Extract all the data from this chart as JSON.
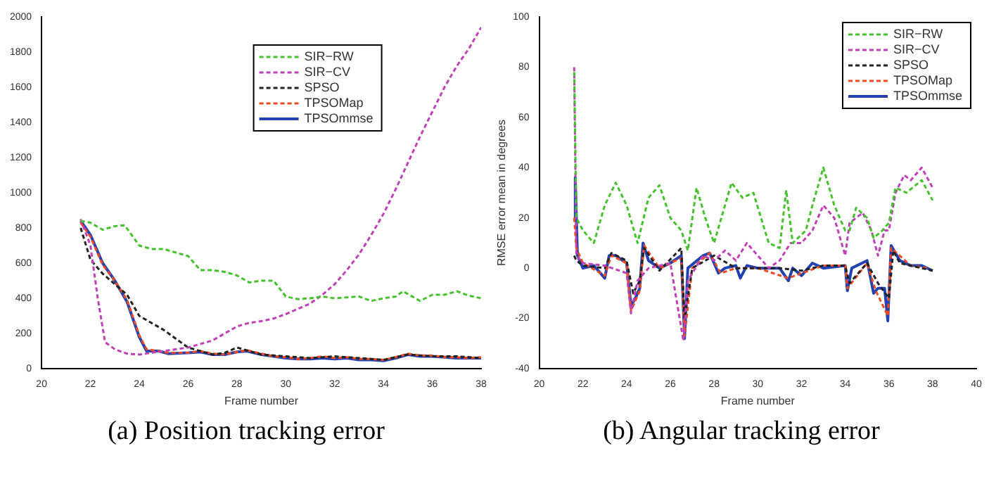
{
  "chart_data": [
    {
      "type": "line",
      "title": "(a) Position tracking error",
      "xlabel": "Frame number",
      "xlim": [
        20,
        38
      ],
      "xticks": [
        20,
        22,
        24,
        26,
        28,
        30,
        32,
        34,
        36,
        38
      ],
      "ylim": [
        0,
        2000
      ],
      "yticks": [
        0,
        200,
        400,
        600,
        800,
        1000,
        1200,
        1400,
        1600,
        1800,
        2000
      ],
      "grid": false,
      "legend": "top",
      "series": [
        {
          "name": "SIR−RW",
          "color": "#44c22c",
          "line_style": "dashed",
          "x": [
            21.6,
            22,
            22.5,
            23,
            23.4,
            24,
            24.5,
            25,
            25.5,
            26,
            26.5,
            27,
            27.5,
            28,
            28.5,
            29,
            29.5,
            30,
            30.5,
            31,
            31.5,
            32,
            32.5,
            33,
            33.5,
            34,
            34.5,
            34.8,
            35.5,
            36,
            36.5,
            37,
            37.5,
            38
          ],
          "values": [
            840,
            830,
            790,
            810,
            815,
            700,
            680,
            680,
            660,
            640,
            560,
            560,
            550,
            530,
            490,
            500,
            500,
            410,
            395,
            400,
            410,
            400,
            405,
            410,
            385,
            400,
            410,
            440,
            385,
            420,
            420,
            440,
            415,
            400
          ]
        },
        {
          "name": "SIR−CV",
          "color": "#c040b8",
          "line_style": "dashed",
          "x": [
            21.6,
            22,
            22.3,
            22.6,
            23,
            23.5,
            24,
            24.5,
            25,
            25.5,
            26,
            26.5,
            27,
            27.5,
            28,
            28.5,
            29,
            29.5,
            30,
            30.5,
            31,
            31.5,
            32,
            32.5,
            33,
            33.5,
            34,
            34.5,
            35,
            35.5,
            36,
            36.5,
            37,
            37.5,
            38
          ],
          "values": [
            850,
            700,
            400,
            150,
            110,
            85,
            80,
            90,
            100,
            110,
            120,
            140,
            160,
            200,
            240,
            260,
            270,
            285,
            310,
            340,
            370,
            420,
            480,
            560,
            650,
            760,
            880,
            1020,
            1170,
            1320,
            1460,
            1600,
            1720,
            1820,
            1940
          ]
        },
        {
          "name": "SPSO",
          "color": "#222222",
          "line_style": "dashed",
          "x": [
            21.6,
            22,
            22.5,
            23,
            23.5,
            24,
            24.5,
            25,
            25.5,
            26,
            26.5,
            27,
            27.5,
            28,
            28.5,
            29,
            30,
            31,
            32,
            33,
            34,
            35,
            36,
            37,
            38
          ],
          "values": [
            800,
            620,
            540,
            480,
            420,
            300,
            260,
            220,
            170,
            120,
            100,
            80,
            90,
            120,
            100,
            80,
            70,
            60,
            70,
            60,
            50,
            80,
            70,
            70,
            60
          ]
        },
        {
          "name": "TPSOMap",
          "color": "#f04a20",
          "line_style": "dashed",
          "x": [
            21.6,
            22,
            22.5,
            23,
            23.5,
            24,
            24.3,
            24.8,
            25.2,
            26,
            26.5,
            27,
            27.5,
            28,
            28.4,
            29,
            29.5,
            30,
            30.5,
            31,
            31.5,
            32,
            32.5,
            33,
            33.5,
            34,
            34.5,
            35,
            35.5,
            36,
            36.5,
            37,
            37.5,
            38
          ],
          "values": [
            830,
            750,
            590,
            500,
            390,
            190,
            110,
            100,
            90,
            90,
            100,
            85,
            80,
            95,
            105,
            85,
            70,
            65,
            55,
            60,
            70,
            60,
            65,
            55,
            55,
            50,
            65,
            85,
            75,
            75,
            65,
            65,
            60,
            65
          ]
        },
        {
          "name": "TPSOmmse",
          "color": "#2242b4",
          "line_style": "solid",
          "x": [
            21.6,
            22,
            22.5,
            23,
            23.5,
            24,
            24.3,
            24.8,
            25.2,
            26,
            26.5,
            27,
            27.5,
            28,
            28.4,
            29,
            29.5,
            30,
            30.5,
            31,
            31.5,
            32,
            32.5,
            33,
            33.5,
            34,
            34.5,
            35,
            35.5,
            36,
            36.5,
            37,
            37.5,
            38
          ],
          "values": [
            840,
            760,
            600,
            500,
            380,
            180,
            100,
            100,
            85,
            90,
            95,
            80,
            80,
            95,
            100,
            80,
            70,
            60,
            55,
            55,
            60,
            55,
            60,
            50,
            50,
            45,
            60,
            80,
            70,
            70,
            65,
            60,
            60,
            60
          ]
        }
      ]
    },
    {
      "type": "line",
      "title": "(b) Angular tracking error",
      "xlabel": "Frame number",
      "ylabel": "RMSE error mean in degrees",
      "xlim": [
        20,
        40
      ],
      "xticks": [
        20,
        22,
        24,
        26,
        28,
        30,
        32,
        34,
        36,
        38,
        40
      ],
      "ylim": [
        -40,
        100
      ],
      "yticks": [
        -40,
        -20,
        0,
        20,
        40,
        60,
        80,
        100
      ],
      "grid": false,
      "legend": "top right",
      "series": [
        {
          "name": "SIR−RW",
          "color": "#44c22c",
          "line_style": "dashed",
          "x": [
            21.6,
            21.7,
            22,
            22.5,
            23,
            23.5,
            24,
            24.5,
            25,
            25.5,
            26,
            26.5,
            26.8,
            27.2,
            27.6,
            28,
            28.8,
            29.3,
            29.8,
            30.5,
            31,
            31.3,
            31.6,
            32.2,
            32.5,
            33,
            33.5,
            34,
            34.2,
            34.5,
            35,
            35.3,
            35.7,
            36,
            36.3,
            36.8,
            37.5,
            38
          ],
          "values": [
            78,
            20,
            15,
            10,
            25,
            34,
            25,
            10,
            28,
            33,
            20,
            15,
            7,
            32,
            20,
            10,
            34,
            28,
            30,
            10,
            8,
            31,
            10,
            15,
            25,
            40,
            25,
            15,
            15,
            24,
            20,
            12,
            15,
            18,
            32,
            30,
            35,
            27
          ]
        },
        {
          "name": "SIR−CV",
          "color": "#c040b8",
          "line_style": "dashed",
          "x": [
            21.6,
            21.7,
            22,
            23,
            24,
            24.2,
            24.5,
            25,
            26,
            26.6,
            26.8,
            27.5,
            28,
            28.5,
            29,
            29.5,
            30,
            30.5,
            31,
            31.5,
            32,
            32.5,
            33,
            33.5,
            34,
            34.2,
            34.8,
            35.2,
            35.5,
            35.8,
            36,
            36.3,
            36.7,
            37,
            37.5,
            38
          ],
          "values": [
            80,
            5,
            2,
            1,
            -2,
            -18,
            -5,
            0,
            2,
            -29,
            -5,
            5,
            3,
            7,
            3,
            10,
            5,
            0,
            3,
            10,
            10,
            15,
            25,
            20,
            5,
            18,
            22,
            15,
            5,
            15,
            15,
            30,
            37,
            35,
            40,
            32
          ]
        },
        {
          "name": "SPSO",
          "color": "#222222",
          "line_style": "dashed",
          "x": [
            21.6,
            21.7,
            22,
            23,
            23.3,
            24,
            24.3,
            24.6,
            24.8,
            25.5,
            26.5,
            26.65,
            27,
            28,
            29,
            30,
            31,
            32,
            33,
            34,
            34.2,
            35,
            35.5,
            36,
            36.2,
            36.5,
            37,
            38
          ],
          "values": [
            5,
            3,
            1,
            0,
            6,
            3,
            -10,
            -5,
            8,
            -1,
            8,
            -20,
            0,
            5,
            0,
            0,
            0,
            -1,
            1,
            1,
            -6,
            2,
            -6,
            -12,
            7,
            2,
            1,
            -1
          ]
        },
        {
          "name": "TPSOMap",
          "color": "#f04a20",
          "line_style": "dashed",
          "x": [
            21.6,
            21.7,
            22,
            23,
            23.3,
            24,
            24.2,
            24.6,
            24.8,
            25.5,
            26.5,
            26.65,
            27,
            27.8,
            28.3,
            29,
            30,
            31.4,
            32,
            33,
            34,
            34.1,
            35,
            35.4,
            35.95,
            36.1,
            37,
            37.8
          ],
          "values": [
            20,
            8,
            2,
            -3,
            5,
            2,
            -17,
            -9,
            9,
            0,
            4,
            -27,
            0,
            6,
            -2,
            0,
            0,
            -4,
            -2,
            1,
            1,
            -8,
            2,
            -9,
            -19,
            8,
            1,
            0
          ]
        },
        {
          "name": "TPSOmmse",
          "color": "#2242b4",
          "line_style": "solid",
          "x": [
            21.6,
            21.65,
            21.75,
            22,
            22.5,
            23,
            23.2,
            23.5,
            24,
            24.2,
            24.4,
            24.6,
            24.75,
            25,
            25.5,
            26,
            26.5,
            26.65,
            26.8,
            27.5,
            27.8,
            28.2,
            28.5,
            29,
            29.2,
            29.5,
            30,
            31,
            31.4,
            31.6,
            32,
            32.5,
            33,
            34,
            34.1,
            34.3,
            35,
            35.3,
            35.5,
            35.8,
            35.95,
            36.1,
            36.5,
            37,
            37.5,
            38
          ],
          "values": [
            20,
            36,
            5,
            0,
            1,
            -4,
            5,
            5,
            2,
            -15,
            -12,
            -8,
            10,
            3,
            0,
            2,
            5,
            -28,
            0,
            5,
            6,
            -2,
            0,
            1,
            -4,
            1,
            0,
            0,
            -5,
            0,
            -3,
            2,
            0,
            1,
            -9,
            0,
            3,
            -10,
            -8,
            -8,
            -21,
            9,
            3,
            1,
            1,
            -1
          ]
        }
      ]
    }
  ]
}
